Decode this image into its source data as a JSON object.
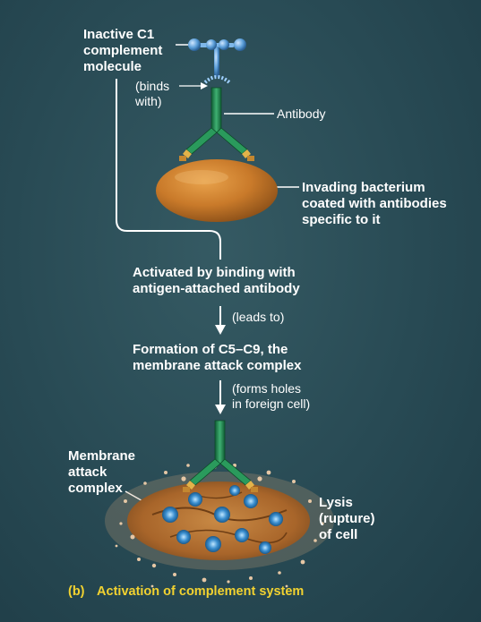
{
  "labels": {
    "c1": "Inactive C1\ncomplement\nmolecule",
    "binds": "(binds\nwith)",
    "antibody": "Antibody",
    "bacterium": "Invading bacterium\ncoated with antibodies\nspecific to it",
    "activated": "Activated by binding with\nantigen-attached antibody",
    "leads_to": "(leads to)",
    "formation": "Formation of C5–C9, the\nmembrane attack complex",
    "forms_holes": "(forms holes\nin foreign cell)",
    "mac": "Membrane\nattack\ncomplex",
    "lysis": "Lysis\n(rupture)\nof cell"
  },
  "caption": {
    "part": "(b)",
    "title": "Activation of complement system"
  },
  "colors": {
    "background": "#284a54",
    "antibody_stem": "#1f8a4f",
    "antibody_tip": "#e2b34a",
    "bacterium": "#c97a2a",
    "complement": "#5b9ed8",
    "caption": "#f2d230"
  }
}
